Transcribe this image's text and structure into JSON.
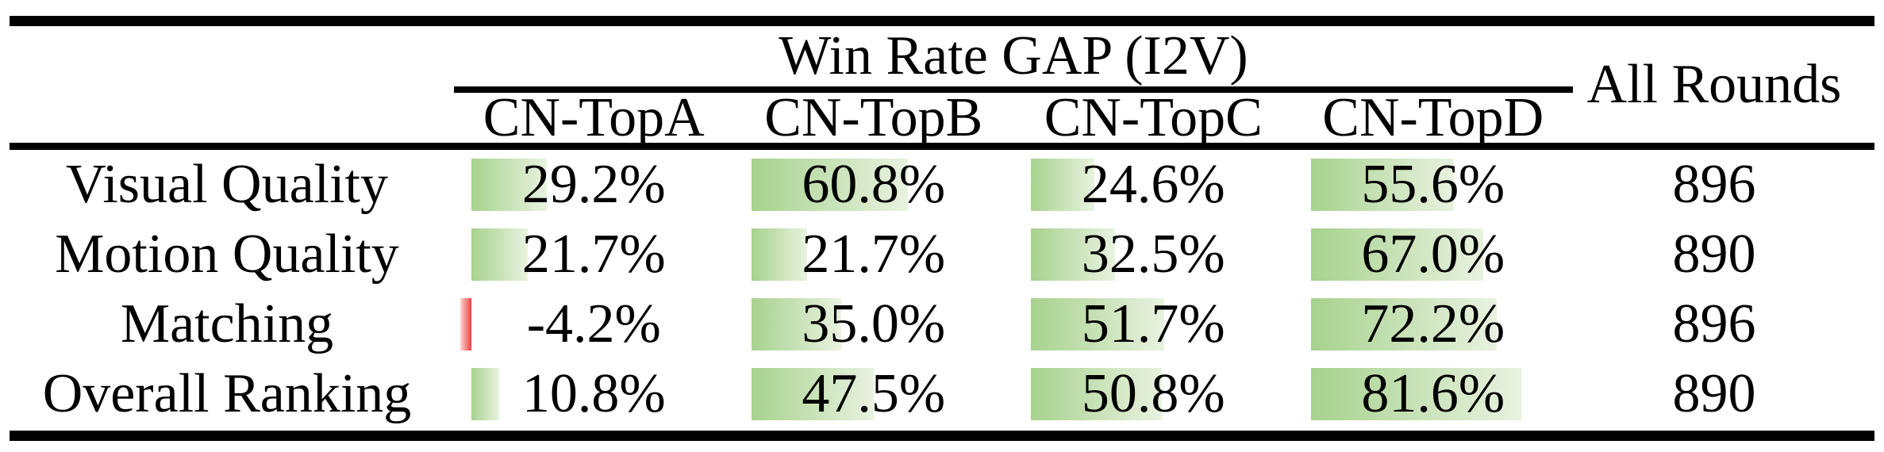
{
  "table": {
    "group_header": "Win Rate GAP (I2V)",
    "all_rounds_header": "All Rounds",
    "columns": [
      "CN-TopA",
      "CN-TopB",
      "CN-TopC",
      "CN-TopD"
    ],
    "rows": [
      {
        "label": "Visual Quality",
        "values": [
          "29.2%",
          "60.8%",
          "24.6%",
          "55.6%"
        ],
        "bar_values": [
          29.2,
          60.8,
          24.6,
          55.6
        ],
        "all_rounds": "896"
      },
      {
        "label": "Motion Quality",
        "values": [
          "21.7%",
          "21.7%",
          "32.5%",
          "67.0%"
        ],
        "bar_values": [
          21.7,
          21.7,
          32.5,
          67.0
        ],
        "all_rounds": "890"
      },
      {
        "label": "Matching",
        "values": [
          "-4.2%",
          "35.0%",
          "51.7%",
          "72.2%"
        ],
        "bar_values": [
          -4.2,
          35.0,
          51.7,
          72.2
        ],
        "all_rounds": "896"
      },
      {
        "label": "Overall Ranking",
        "values": [
          "10.8%",
          "47.5%",
          "50.8%",
          "81.6%"
        ],
        "bar_values": [
          10.8,
          47.5,
          50.8,
          81.6
        ],
        "all_rounds": "890"
      }
    ]
  },
  "colors": {
    "bar_green_start": "#a7d28e",
    "bar_green_end": "#e9f2e0",
    "bar_red_start": "#f14040",
    "bar_red_end": "#fdd6d6",
    "rule_color": "#000000",
    "page_bg": "#ffffff",
    "text_color": "#000000"
  },
  "chart_data": {
    "type": "table",
    "title": "Win Rate GAP (I2V)",
    "columns": [
      "CN-TopA",
      "CN-TopB",
      "CN-TopC",
      "CN-TopD",
      "All Rounds"
    ],
    "row_labels": [
      "Visual Quality",
      "Motion Quality",
      "Matching",
      "Overall Ranking"
    ],
    "win_rate_gap_percent": [
      [
        29.2,
        60.8,
        24.6,
        55.6
      ],
      [
        21.7,
        21.7,
        32.5,
        67.0
      ],
      [
        -4.2,
        35.0,
        51.7,
        72.2
      ],
      [
        10.8,
        47.5,
        50.8,
        81.6
      ]
    ],
    "all_rounds": [
      896,
      890,
      896,
      890
    ],
    "bar_scale": "data bars span 0-100% of cell width; negative values shown as red bar left of axis",
    "legend_position": "none",
    "grid": false
  }
}
